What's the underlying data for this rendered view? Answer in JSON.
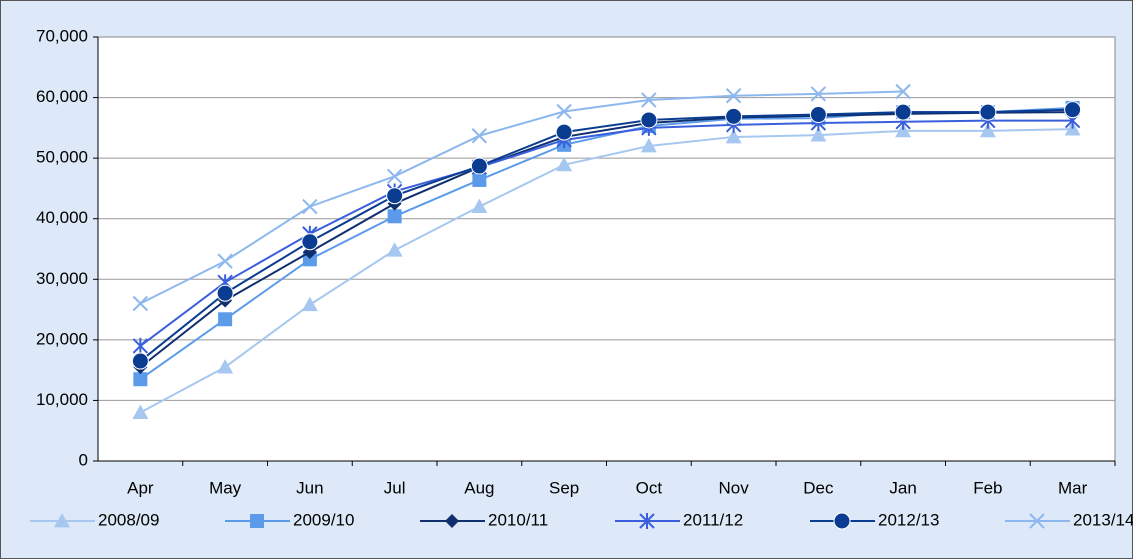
{
  "chart_data": {
    "type": "line",
    "categories": [
      "Apr",
      "May",
      "Jun",
      "Jul",
      "Aug",
      "Sep",
      "Oct",
      "Nov",
      "Dec",
      "Jan",
      "Feb",
      "Mar"
    ],
    "ylim": [
      0,
      70000
    ],
    "yticks": [
      0,
      {
        "value": 10000,
        "label": "10,000"
      },
      {
        "value": 20000,
        "label": "20,000"
      },
      {
        "value": 30000,
        "label": "30,000"
      },
      {
        "value": 40000,
        "label": "40,000"
      },
      {
        "value": 50000,
        "label": "50,000"
      },
      {
        "value": 60000,
        "label": "60,000"
      },
      {
        "value": 70000,
        "label": "70,000"
      }
    ],
    "grid": true,
    "legend": "bottom",
    "series": [
      {
        "name": "2008/09",
        "color": "#a6c8f0",
        "marker": "triangle",
        "values": [
          8000,
          15500,
          25800,
          34800,
          42000,
          48900,
          52000,
          53500,
          53800,
          54500,
          54500,
          54800
        ]
      },
      {
        "name": "2009/10",
        "color": "#5b9bea",
        "marker": "square",
        "values": [
          13500,
          23400,
          33300,
          40400,
          46400,
          52200,
          55300,
          56500,
          56600,
          57600,
          57600,
          58300
        ]
      },
      {
        "name": "2010/11",
        "color": "#0f2f6e",
        "marker": "diamond",
        "values": [
          15500,
          26500,
          34500,
          42500,
          48500,
          53500,
          55800,
          56700,
          57000,
          57300,
          57500,
          57600
        ]
      },
      {
        "name": "2011/12",
        "color": "#3a5fdc",
        "marker": "star",
        "values": [
          19000,
          29500,
          37500,
          44500,
          48500,
          53000,
          55000,
          55500,
          55800,
          56000,
          56200,
          56200
        ]
      },
      {
        "name": "2012/13",
        "color": "#0a3d91",
        "marker": "circle",
        "values": [
          16500,
          27700,
          36200,
          43800,
          48700,
          54300,
          56300,
          56900,
          57200,
          57600,
          57600,
          58000
        ]
      },
      {
        "name": "2013/14",
        "color": "#8db8ee",
        "marker": "x",
        "values": [
          26000,
          33000,
          42000,
          47000,
          53700,
          57700,
          59600,
          60300,
          60600,
          61000,
          null,
          null
        ]
      }
    ]
  }
}
